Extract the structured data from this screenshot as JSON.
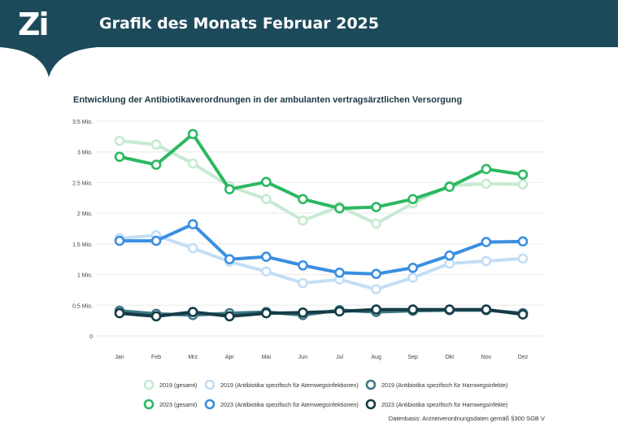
{
  "header": {
    "logo": "Zi",
    "title": "Grafik des Monats Februar 2025"
  },
  "chart_data": {
    "type": "line",
    "title": "Entwicklung der Antibiotikaverordnungen in der ambulanten vertragsärztlichen Versorgung",
    "categories": [
      "Jan",
      "Feb",
      "Mrz",
      "Apr",
      "Mai",
      "Jun",
      "Jul",
      "Aug",
      "Sep",
      "Okt",
      "Nov",
      "Dez"
    ],
    "yticks": [
      {
        "v": 0,
        "label": "0"
      },
      {
        "v": 0.5,
        "label": "0.5 Mio."
      },
      {
        "v": 1,
        "label": "1 Mio."
      },
      {
        "v": 1.5,
        "label": "1.5 Mio."
      },
      {
        "v": 2,
        "label": "2 Mio."
      },
      {
        "v": 2.5,
        "label": "2.5 Mio."
      },
      {
        "v": 3,
        "label": "3 Mio."
      },
      {
        "v": 3.5,
        "label": "3.5 Mio."
      }
    ],
    "ylim": [
      0,
      3.5
    ],
    "yunit": "Mio.",
    "grid": true,
    "legend": "bottom",
    "series": [
      {
        "name": "2019 (gesamt)",
        "color": "#c6ead2",
        "width": 4,
        "values": [
          3.18,
          3.12,
          2.81,
          2.44,
          2.23,
          1.88,
          2.11,
          1.83,
          2.16,
          2.45,
          2.48,
          2.47
        ]
      },
      {
        "name": "2019 (Antibiotika spezifisch für Atemwegsinfektionen)",
        "color": "#c3def6",
        "width": 4,
        "values": [
          1.59,
          1.64,
          1.43,
          1.21,
          1.05,
          0.86,
          0.92,
          0.76,
          0.95,
          1.18,
          1.22,
          1.26
        ]
      },
      {
        "name": "2019 (Antibiotika spezifisch für Harnwegsinfekte)",
        "color": "#3f7886",
        "width": 4,
        "values": [
          0.41,
          0.36,
          0.34,
          0.37,
          0.39,
          0.34,
          0.42,
          0.39,
          0.41,
          0.42,
          0.42,
          0.37
        ]
      },
      {
        "name": "2023 (gesamt)",
        "color": "#2cb862",
        "width": 4,
        "values": [
          2.92,
          2.79,
          3.29,
          2.39,
          2.51,
          2.23,
          2.08,
          2.1,
          2.23,
          2.43,
          2.72,
          2.63
        ]
      },
      {
        "name": "2023 (Antibiotika spezifisch für Atemwegsinfektionen)",
        "color": "#3a8fe0",
        "width": 4,
        "values": [
          1.55,
          1.55,
          1.82,
          1.25,
          1.29,
          1.15,
          1.03,
          1.01,
          1.11,
          1.31,
          1.53,
          1.54
        ]
      },
      {
        "name": "2023 (Antibiotika spezifisch für Harnwegsinfekte)",
        "color": "#153c47",
        "width": 4,
        "values": [
          0.37,
          0.32,
          0.39,
          0.32,
          0.37,
          0.38,
          0.4,
          0.43,
          0.43,
          0.43,
          0.43,
          0.35
        ]
      }
    ]
  },
  "source": "Datenbasis: Arzneiverordnungsdaten gemäß §300 SGB V"
}
